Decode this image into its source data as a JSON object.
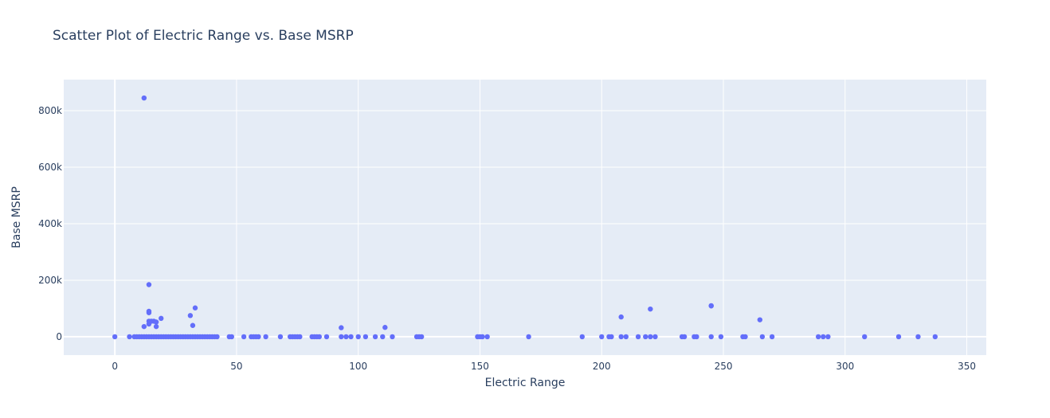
{
  "colors": {
    "plot_bg": "#e5ecf6",
    "grid": "#ffffff",
    "marker": "#636efa",
    "text": "#2a3f5f"
  },
  "chart_data": {
    "type": "scatter",
    "title": "Scatter Plot of Electric Range vs. Base MSRP",
    "xlabel": "Electric Range",
    "ylabel": "Base MSRP",
    "xlim": [
      -21,
      358
    ],
    "ylim": [
      -65000,
      910000
    ],
    "xticks": [
      0,
      50,
      100,
      150,
      200,
      250,
      300,
      350
    ],
    "xtick_labels": [
      "0",
      "50",
      "100",
      "150",
      "200",
      "250",
      "300",
      "350"
    ],
    "yticks": [
      0,
      200000,
      400000,
      600000,
      800000
    ],
    "ytick_labels": [
      "0",
      "200k",
      "400k",
      "600k",
      "800k"
    ],
    "grid": true,
    "series": [
      {
        "points": [
          [
            0,
            0
          ],
          [
            6,
            0
          ],
          [
            8,
            0
          ],
          [
            9,
            0
          ],
          [
            10,
            0
          ],
          [
            11,
            0
          ],
          [
            12,
            0
          ],
          [
            13,
            0
          ],
          [
            14,
            0
          ],
          [
            15,
            0
          ],
          [
            16,
            0
          ],
          [
            17,
            0
          ],
          [
            18,
            0
          ],
          [
            19,
            0
          ],
          [
            20,
            0
          ],
          [
            21,
            0
          ],
          [
            22,
            0
          ],
          [
            23,
            0
          ],
          [
            24,
            0
          ],
          [
            25,
            0
          ],
          [
            26,
            0
          ],
          [
            27,
            0
          ],
          [
            28,
            0
          ],
          [
            29,
            0
          ],
          [
            30,
            0
          ],
          [
            31,
            0
          ],
          [
            32,
            0
          ],
          [
            33,
            0
          ],
          [
            34,
            0
          ],
          [
            35,
            0
          ],
          [
            36,
            0
          ],
          [
            37,
            0
          ],
          [
            38,
            0
          ],
          [
            39,
            0
          ],
          [
            40,
            0
          ],
          [
            41,
            0
          ],
          [
            42,
            0
          ],
          [
            47,
            0
          ],
          [
            48,
            0
          ],
          [
            53,
            0
          ],
          [
            56,
            0
          ],
          [
            57,
            0
          ],
          [
            58,
            0
          ],
          [
            59,
            0
          ],
          [
            62,
            0
          ],
          [
            68,
            0
          ],
          [
            72,
            0
          ],
          [
            73,
            0
          ],
          [
            74,
            0
          ],
          [
            75,
            0
          ],
          [
            76,
            0
          ],
          [
            81,
            0
          ],
          [
            82,
            0
          ],
          [
            83,
            0
          ],
          [
            84,
            0
          ],
          [
            87,
            0
          ],
          [
            93,
            0
          ],
          [
            95,
            0
          ],
          [
            97,
            0
          ],
          [
            100,
            0
          ],
          [
            103,
            0
          ],
          [
            107,
            0
          ],
          [
            110,
            0
          ],
          [
            114,
            0
          ],
          [
            124,
            0
          ],
          [
            125,
            0
          ],
          [
            126,
            0
          ],
          [
            149,
            0
          ],
          [
            150,
            0
          ],
          [
            151,
            0
          ],
          [
            153,
            0
          ],
          [
            170,
            0
          ],
          [
            192,
            0
          ],
          [
            200,
            0
          ],
          [
            203,
            0
          ],
          [
            204,
            0
          ],
          [
            208,
            0
          ],
          [
            210,
            0
          ],
          [
            215,
            0
          ],
          [
            218,
            0
          ],
          [
            220,
            0
          ],
          [
            222,
            0
          ],
          [
            233,
            0
          ],
          [
            234,
            0
          ],
          [
            238,
            0
          ],
          [
            239,
            0
          ],
          [
            245,
            0
          ],
          [
            249,
            0
          ],
          [
            258,
            0
          ],
          [
            259,
            0
          ],
          [
            266,
            0
          ],
          [
            270,
            0
          ],
          [
            289,
            0
          ],
          [
            291,
            0
          ],
          [
            293,
            0
          ],
          [
            308,
            0
          ],
          [
            322,
            0
          ],
          [
            330,
            0
          ],
          [
            337,
            0
          ],
          [
            12,
            845000
          ],
          [
            14,
            184400
          ],
          [
            14,
            90000
          ],
          [
            14,
            85000
          ],
          [
            14,
            55000
          ],
          [
            14,
            45000
          ],
          [
            15,
            55000
          ],
          [
            16,
            55000
          ],
          [
            17,
            52000
          ],
          [
            17,
            36000
          ],
          [
            12,
            36000
          ],
          [
            19,
            65000
          ],
          [
            31,
            75000
          ],
          [
            32,
            40000
          ],
          [
            33,
            102000
          ],
          [
            93,
            32000
          ],
          [
            111,
            33000
          ],
          [
            208,
            70000
          ],
          [
            220,
            98000
          ],
          [
            245,
            110000
          ],
          [
            245,
            109000
          ],
          [
            265,
            60000
          ]
        ]
      }
    ]
  }
}
